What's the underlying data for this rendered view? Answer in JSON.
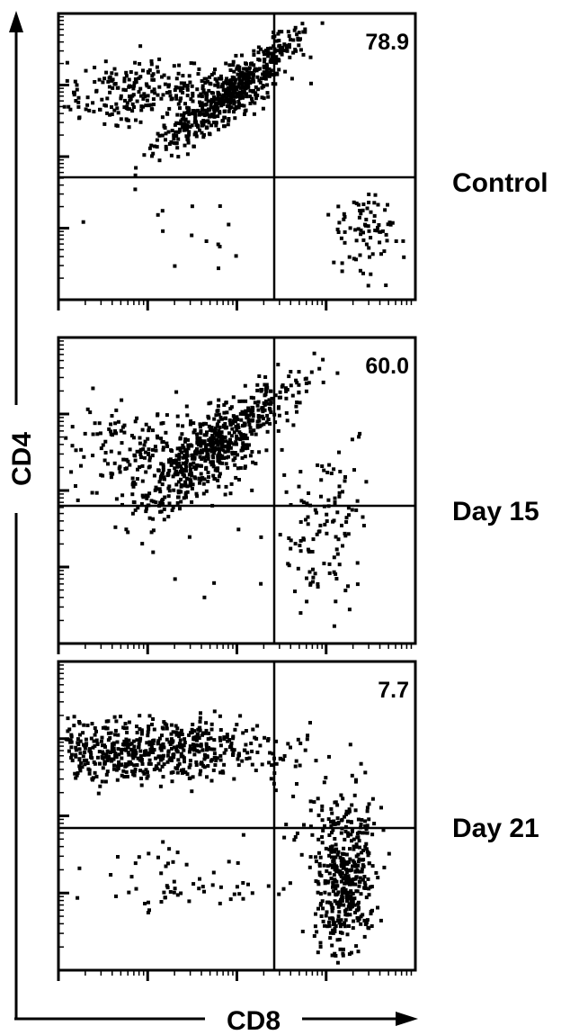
{
  "axes": {
    "y_label": "CD4",
    "x_label": "CD8"
  },
  "panels": [
    {
      "label": "Control",
      "percent": "78.9"
    },
    {
      "label": "Day 15",
      "percent": "60.0"
    },
    {
      "label": "Day 21",
      "percent": "7.7"
    }
  ]
}
